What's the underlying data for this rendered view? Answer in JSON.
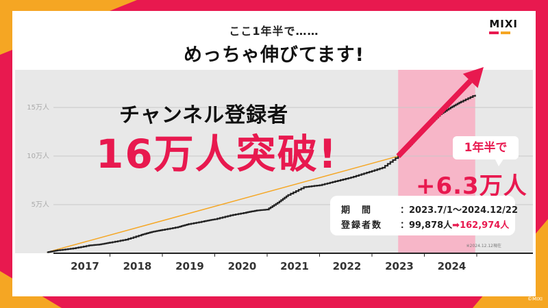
{
  "header": {
    "subtitle": "ここ1年半で……",
    "title": "めっちゃ伸びてます!"
  },
  "logo": {
    "text": "MIXI",
    "colors": [
      "#e8194f",
      "#f5a623"
    ]
  },
  "colors": {
    "accent": "#e8194f",
    "orange": "#f5a623",
    "plot_bg": "#e8e8e8",
    "highlight": "#f7b6c8",
    "line": "#222222"
  },
  "headline": {
    "line1": "チャンネル登録者",
    "line2": "16万人突破!"
  },
  "callout": {
    "bubble": "1年半で",
    "growth": "+6.3万人",
    "period_label": "期　間",
    "period_value": "：2023.7/1～2024.12/22",
    "subs_label": "登録者数",
    "subs_before": "：99,878人",
    "arrow": "➡",
    "subs_after": "162,974人"
  },
  "note": "※2024.12.12現在",
  "copyright": "©MIXI",
  "chart_data": {
    "type": "line",
    "title": "",
    "xlabel": "",
    "ylabel": "",
    "ylim": [
      0,
      150000
    ],
    "y_ticks": [
      {
        "value": 50000,
        "label": "5万人"
      },
      {
        "value": 100000,
        "label": "10万人"
      },
      {
        "value": 150000,
        "label": "15万人"
      }
    ],
    "x_ticks": [
      "2017",
      "2018",
      "2019",
      "2020",
      "2021",
      "2022",
      "2023",
      "2024"
    ],
    "x_range": [
      2016.6,
      2025.0
    ],
    "highlight_range": [
      2023.5,
      2024.97
    ],
    "grid": true,
    "series": [
      {
        "x": [
          2016.8,
          2017.0,
          2017.3,
          2017.6,
          2017.8,
          2018.0,
          2018.3,
          2018.6,
          2018.8,
          2019.0,
          2019.3,
          2019.5,
          2019.8,
          2020.0,
          2020.3,
          2020.6,
          2020.8,
          2021.0,
          2021.2,
          2021.4,
          2021.7,
          2022.0,
          2022.3,
          2022.6,
          2022.9,
          2023.2,
          2023.5,
          2023.7,
          2023.9,
          2024.1,
          2024.3,
          2024.5,
          2024.7,
          2024.97
        ],
        "y": [
          1000,
          3000,
          5000,
          8000,
          9000,
          11000,
          14000,
          19000,
          22000,
          24000,
          27000,
          30000,
          33000,
          35000,
          39000,
          42000,
          44000,
          45000,
          52000,
          60000,
          68000,
          70000,
          74000,
          78000,
          83000,
          88000,
          99878,
          110000,
          122000,
          133000,
          143000,
          150000,
          156000,
          162974
        ]
      }
    ],
    "annotation": {
      "type": "trend-arrow"
    }
  }
}
